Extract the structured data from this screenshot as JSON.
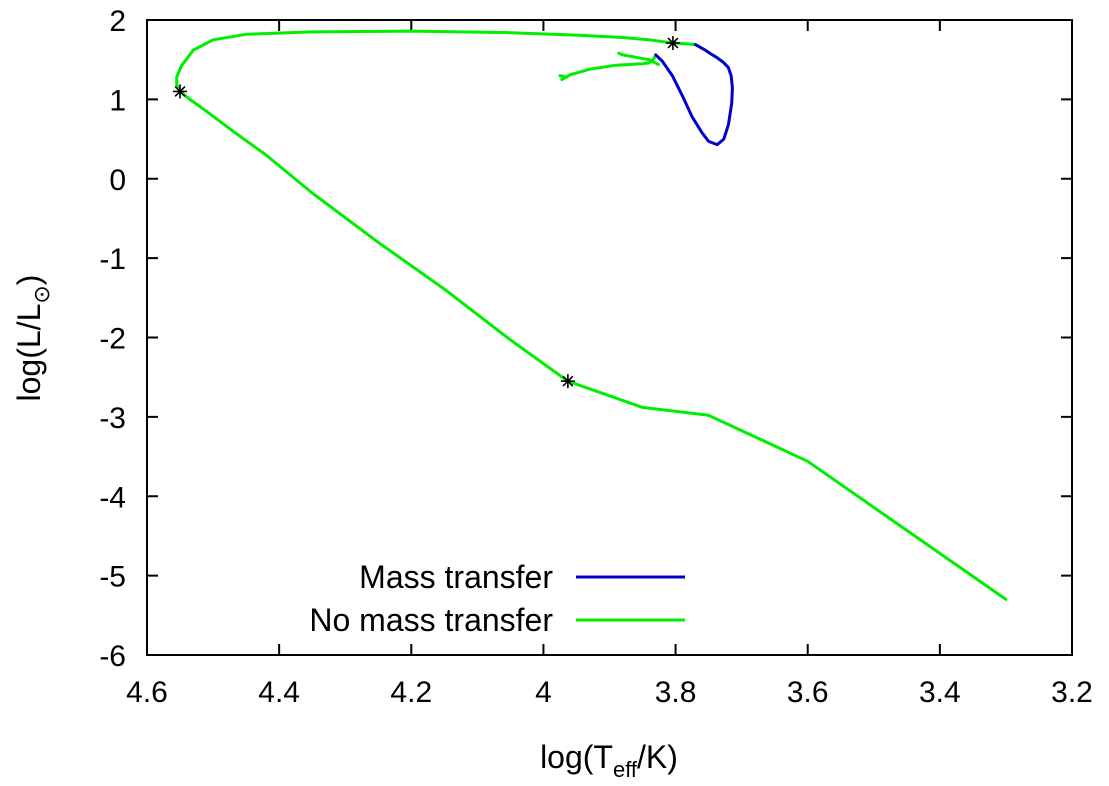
{
  "chart_data": {
    "type": "line",
    "xlabel": {
      "base": "log(T",
      "sub": "eff",
      "tail": "/K)"
    },
    "ylabel": {
      "base": "log(L/L",
      "sub": "⊙",
      "tail": ")"
    },
    "xlim": [
      4.6,
      3.2
    ],
    "ylim": [
      -6,
      2
    ],
    "x_ticks": [
      "4.6",
      "4.4",
      "4.2",
      "4",
      "3.8",
      "3.6",
      "3.4",
      "3.2"
    ],
    "y_ticks": [
      "-6",
      "-5",
      "-4",
      "-3",
      "-2",
      "-1",
      "0",
      "1",
      "2"
    ],
    "grid": false,
    "legend_position": "bottom-left",
    "series": [
      {
        "name": "Mass transfer",
        "color": "#0000cc",
        "points": [
          [
            3.83,
            1.56
          ],
          [
            3.82,
            1.48
          ],
          [
            3.805,
            1.3
          ],
          [
            3.79,
            1.05
          ],
          [
            3.775,
            0.78
          ],
          [
            3.76,
            0.58
          ],
          [
            3.75,
            0.47
          ],
          [
            3.737,
            0.43
          ],
          [
            3.727,
            0.5
          ],
          [
            3.72,
            0.68
          ],
          [
            3.715,
            0.95
          ],
          [
            3.714,
            1.15
          ],
          [
            3.716,
            1.3
          ],
          [
            3.72,
            1.4
          ],
          [
            3.728,
            1.47
          ],
          [
            3.738,
            1.53
          ],
          [
            3.748,
            1.58
          ],
          [
            3.757,
            1.63
          ],
          [
            3.77,
            1.69
          ]
        ]
      },
      {
        "name": "No mass transfer",
        "color": "#00ee00",
        "segments": [
          [
            [
              3.3,
              -5.3
            ],
            [
              3.4,
              -4.72
            ],
            [
              3.5,
              -4.14
            ],
            [
              3.6,
              -3.56
            ],
            [
              3.7,
              -3.98
            ],
            [
              3.7,
              -3.98
            ]
          ],
          [
            [
              3.3,
              -5.3
            ],
            [
              3.45,
              -4.43
            ],
            [
              3.6,
              -3.56
            ],
            [
              3.75,
              -2.98
            ],
            [
              3.85,
              -2.88
            ],
            [
              3.963,
              -2.55
            ],
            [
              4.05,
              -2.03
            ],
            [
              4.15,
              -1.39
            ],
            [
              4.25,
              -0.8
            ],
            [
              4.35,
              -0.18
            ],
            [
              4.42,
              0.3
            ],
            [
              4.47,
              0.6
            ],
            [
              4.51,
              0.85
            ],
            [
              4.535,
              1.0
            ],
            [
              4.55,
              1.1
            ]
          ],
          [
            [
              4.55,
              1.1
            ],
            [
              4.555,
              1.18
            ],
            [
              4.555,
              1.28
            ],
            [
              4.548,
              1.42
            ],
            [
              4.53,
              1.62
            ],
            [
              4.5,
              1.75
            ],
            [
              4.45,
              1.82
            ],
            [
              4.35,
              1.85
            ],
            [
              4.2,
              1.86
            ],
            [
              4.05,
              1.84
            ],
            [
              3.95,
              1.81
            ],
            [
              3.88,
              1.78
            ],
            [
              3.84,
              1.75
            ],
            [
              3.804,
              1.71
            ],
            [
              3.785,
              1.7
            ],
            [
              3.77,
              1.69
            ]
          ],
          [
            [
              3.826,
              1.44
            ],
            [
              3.84,
              1.5
            ],
            [
              3.86,
              1.53
            ],
            [
              3.88,
              1.56
            ],
            [
              3.886,
              1.58
            ]
          ],
          [
            [
              3.83,
              1.56
            ],
            [
              3.834,
              1.5
            ],
            [
              3.84,
              1.46
            ],
            [
              3.85,
              1.45
            ],
            [
              3.89,
              1.43
            ],
            [
              3.93,
              1.38
            ],
            [
              3.96,
              1.31
            ],
            [
              3.972,
              1.25
            ]
          ],
          [
            [
              3.972,
              1.25
            ],
            [
              3.965,
              1.28
            ],
            [
              3.975,
              1.3
            ]
          ]
        ]
      }
    ],
    "markers": [
      {
        "x": 4.55,
        "y": 1.1,
        "symbol": "asterisk"
      },
      {
        "x": 3.804,
        "y": 1.71,
        "symbol": "asterisk"
      },
      {
        "x": 3.963,
        "y": -2.55,
        "symbol": "asterisk"
      }
    ]
  }
}
